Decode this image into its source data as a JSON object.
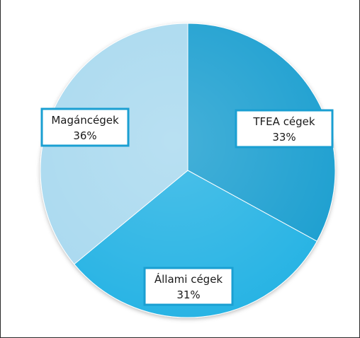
{
  "chart_data": {
    "type": "pie",
    "slices": [
      {
        "name": "TFEA cégek",
        "value": 33,
        "pct_label": "33%",
        "color": "#1b9fd0"
      },
      {
        "name": "Állami cégek",
        "value": 31,
        "pct_label": "31%",
        "color": "#27b3e4"
      },
      {
        "name": "Magáncégek",
        "value": 36,
        "pct_label": "36%",
        "color": "#a9d9ef"
      }
    ],
    "start_angle_deg": 0,
    "direction": "clockwise",
    "label_border_color": "#1a9fd2",
    "legend": "none",
    "title": ""
  }
}
